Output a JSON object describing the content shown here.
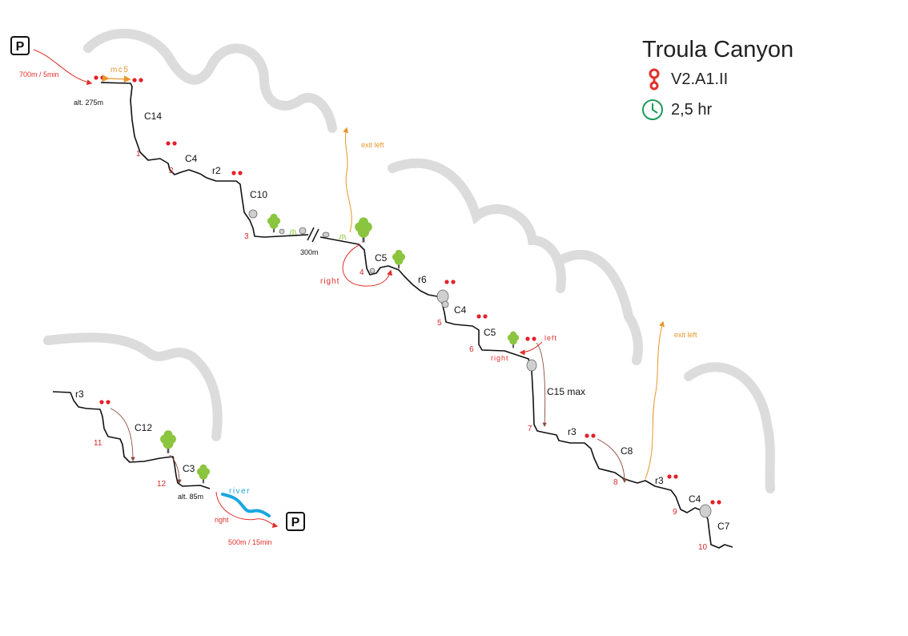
{
  "title": "Troula Canyon",
  "rating": "V2.A1.II",
  "duration": "2,5 hr",
  "approach": {
    "parking_icon": "P",
    "text": "700m / 5min"
  },
  "exit": {
    "parking_icon": "P",
    "text": "500m / 15min",
    "direction": "right"
  },
  "river_label": "river",
  "altitudes": {
    "start": "alt. 275m",
    "end": "alt. 85m"
  },
  "distance_marker": "300m",
  "handline": "mc5",
  "drop_labels": [
    "C14",
    "C4",
    "r2",
    "C10",
    "C5",
    "r6",
    "C4",
    "C5",
    "C15 max",
    "r3",
    "C8",
    "r3",
    "C4",
    "C7",
    "r3",
    "C12",
    "C3"
  ],
  "anchor_numbers": [
    "1",
    "2",
    "3",
    "4",
    "5",
    "6",
    "7",
    "8",
    "9",
    "10",
    "11",
    "12"
  ],
  "exit_labels": [
    "exit left",
    "exit left"
  ],
  "direction_labels": [
    "right",
    "left",
    "right"
  ],
  "colors": {
    "route": "#111111",
    "anchor": "#e3202a",
    "anchor_number": "#d42a2a",
    "exit": "#e8962a",
    "river": "#1aa7e0",
    "tree": "#8bc53f",
    "cliff": "#d9d9d9",
    "arrow_red": "#e0302a",
    "clock": "#1f9a5a"
  },
  "icons": [
    "parking-icon",
    "anchor-icon",
    "tree-icon",
    "boulder-icon",
    "clock-icon",
    "rope-icon"
  ]
}
